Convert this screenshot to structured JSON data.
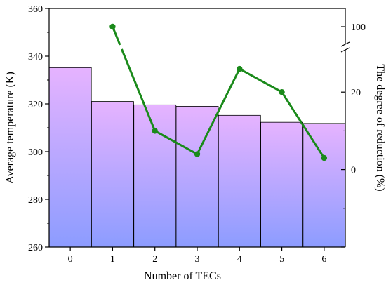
{
  "chart_data": {
    "type": "bar",
    "xlabel": "Number of TECs",
    "ylabel": "Average temperature (K)",
    "y2label": "The degree of reduction (%)",
    "categories": [
      "0",
      "1",
      "2",
      "3",
      "4",
      "5",
      "6"
    ],
    "bar_series": {
      "values": [
        335.2,
        321.0,
        319.6,
        319.0,
        315.2,
        312.3,
        311.8
      ]
    },
    "line_series": {
      "x": [
        "1",
        "2",
        "3",
        "4",
        "5",
        "6"
      ],
      "values": [
        100,
        10,
        4,
        26,
        20,
        3
      ]
    },
    "ylim": [
      260,
      360
    ],
    "yticks": [
      "260",
      "280",
      "300",
      "320",
      "340",
      "360"
    ],
    "y2_axis_break": true,
    "y2_lower_range": [
      -20,
      30
    ],
    "y2_ticks_lower": [
      "0",
      "20"
    ],
    "y2_ticks_upper": [
      "100"
    ],
    "bar_gradient": {
      "top": "#e6b3ff",
      "bottom": "#8c9cff"
    },
    "line_color": "#1a8a1a",
    "grid": false,
    "legend": "none"
  }
}
